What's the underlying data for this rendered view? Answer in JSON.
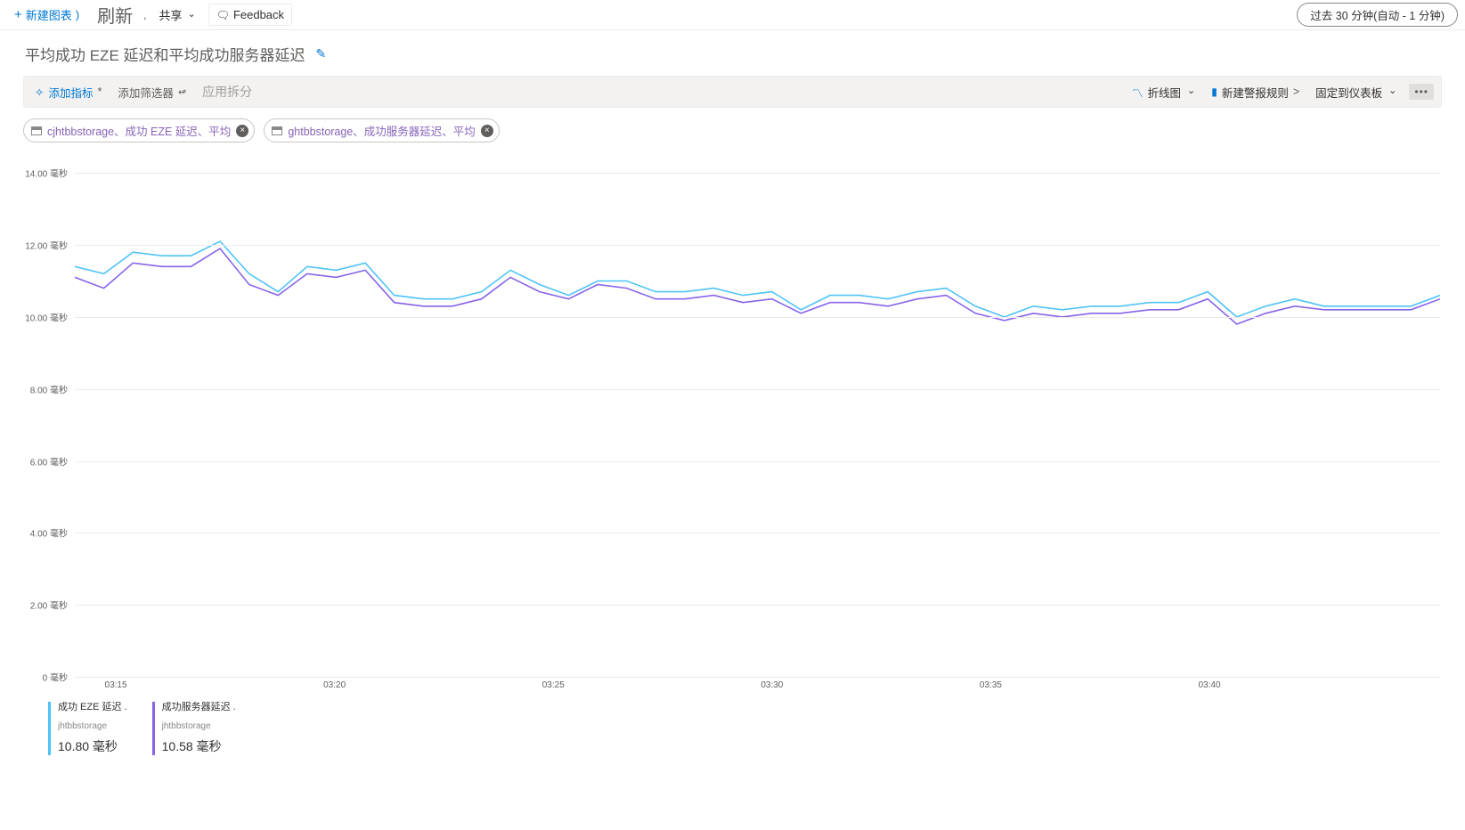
{
  "toolbar": {
    "new_chart": "新建图表",
    "refresh": "刷新",
    "share": "共享",
    "feedback": "Feedback",
    "time_range": "过去 30 分钟(自动 -   1 分钟)"
  },
  "title": "平均成功 EZE 延迟和平均成功服务器延迟",
  "metrics_bar": {
    "add_metric": "添加指标",
    "add_filter": "添加筛选器",
    "apply_split": "应用拆分",
    "chart_type": "折线图",
    "new_alert": "新建警报规则",
    "pin": "固定到仪表板"
  },
  "chips": [
    {
      "text": "cjhtbbstorage、成功 EZE 延迟、平均"
    },
    {
      "text": "ghtbbstorage、成功服务器延迟、平均"
    }
  ],
  "chart": {
    "y_unit": "毫秒",
    "y_ticks": [
      0,
      2,
      4,
      6,
      8,
      10,
      12,
      14
    ],
    "y_max": 14.6,
    "y_labels": [
      "0 毫秒",
      "2.00 毫秒",
      "4.00 毫秒",
      "6.00 毫秒",
      "8.00 毫秒",
      "10.00 毫秒",
      "12.00 毫秒",
      "14.00 毫秒"
    ],
    "x_ticks": [
      "03:15",
      "03:20",
      "03:25",
      "03:30",
      "03:35",
      "03:40"
    ],
    "x_positions_pct": [
      3,
      19,
      35,
      51,
      67,
      83
    ],
    "series": [
      {
        "name": "成功 EZE 延迟",
        "account": "jhtbbstorage",
        "value_label": "10.80 毫秒",
        "color": "#4fc3f7",
        "data": [
          11.4,
          11.2,
          11.8,
          11.7,
          11.7,
          12.1,
          11.2,
          10.7,
          11.4,
          11.3,
          11.5,
          10.6,
          10.5,
          10.5,
          10.7,
          11.3,
          10.9,
          10.6,
          11.0,
          11.0,
          10.7,
          10.7,
          10.8,
          10.6,
          10.7,
          10.2,
          10.6,
          10.6,
          10.5,
          10.7,
          10.8,
          10.3,
          10.0,
          10.3,
          10.2,
          10.3,
          10.3,
          10.4,
          10.4,
          10.7,
          10.0,
          10.3,
          10.5,
          10.3,
          10.3,
          10.3,
          10.3,
          10.6
        ]
      },
      {
        "name": "成功服务器延迟",
        "account": "jhtbbstorage",
        "value_label": "10.58 毫秒",
        "color": "#8764e8",
        "data": [
          11.1,
          10.8,
          11.5,
          11.4,
          11.4,
          11.9,
          10.9,
          10.6,
          11.2,
          11.1,
          11.3,
          10.4,
          10.3,
          10.3,
          10.5,
          11.1,
          10.7,
          10.5,
          10.9,
          10.8,
          10.5,
          10.5,
          10.6,
          10.4,
          10.5,
          10.1,
          10.4,
          10.4,
          10.3,
          10.5,
          10.6,
          10.1,
          9.9,
          10.1,
          10.0,
          10.1,
          10.1,
          10.2,
          10.2,
          10.5,
          9.8,
          10.1,
          10.3,
          10.2,
          10.2,
          10.2,
          10.2,
          10.5
        ]
      }
    ]
  }
}
